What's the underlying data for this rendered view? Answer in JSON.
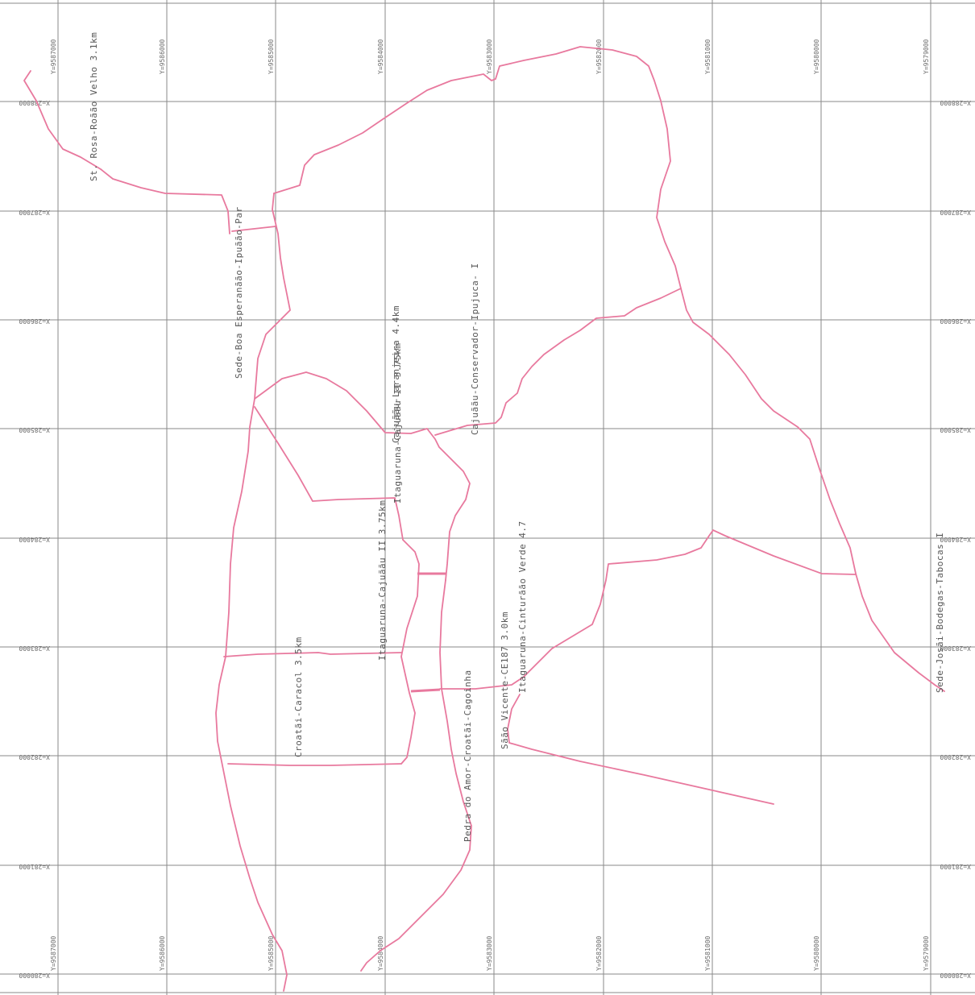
{
  "grid": {
    "y_labels": [
      "Y=9587000",
      "Y=9586000",
      "Y=9585000",
      "Y=9584000",
      "Y=9583000",
      "Y=9582000",
      "Y=9581000",
      "Y=9580000",
      "Y=9579000"
    ],
    "x_labels": [
      "X=288000",
      "X=287000",
      "X=286000",
      "X=285000",
      "X=284000",
      "X=283000",
      "X=282000",
      "X=281000",
      "X=280000"
    ]
  },
  "roads": {
    "st_rosa": "St. Rosa-Roãão Velho 3.1km",
    "sede_boa": "Sede-Boa Esperanãão-Ipuãão-Par",
    "cajuassu_laranjeira": "Cajuããu-Laranjeira 4.4km",
    "cajuassu_conservador": "Cajuããu-Conservador-Ipujuca- I",
    "itaguaruna_cajuassu": "Itaguaruna-Cajuããu II 3.75km",
    "croata_caracol": "Croatãi-Caracol 3.5km",
    "pedra_amor": "Pedra do Amor-Croatãi-Cagoinha",
    "sao_vicente": "Sãão Vicente-CE187 3.0km",
    "itaguaruna_cinturao": "Itaguaruna-Cinturãão Verde 4.7",
    "sede_josai": "Sede-Josãi-Bodegas-Tabocas I"
  },
  "colors": {
    "road": "#e8799e",
    "grid": "#8a8a8a",
    "text": "#555555"
  }
}
